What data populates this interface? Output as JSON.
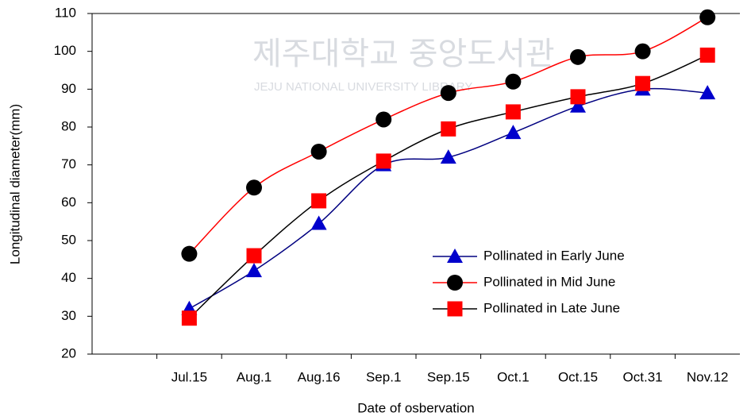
{
  "chart_data": {
    "type": "line",
    "watermark": [
      "제주대학교 중앙도서관",
      "JEJU NATIONAL UNIVERSITY LIBRARY"
    ],
    "xlabel": "Date of osbervation",
    "ylabel": "Longitudinal diameter(mm)",
    "categories": [
      null,
      "Jul.15",
      "Aug.1",
      "Aug.16",
      "Sep.1",
      "Sep.15",
      "Oct.1",
      "Oct.15",
      "Oct.31",
      "Nov.12"
    ],
    "series": [
      {
        "name": "Pollinated in Early June",
        "color": "#000080",
        "marker": "triangle",
        "marker_color": "#0000cc",
        "values": [
          null,
          32,
          42,
          54.5,
          70,
          72,
          78.5,
          85.5,
          90,
          89
        ]
      },
      {
        "name": "Pollinated in Mid June",
        "color": "#ff0000",
        "marker": "circle",
        "marker_color": "#000000",
        "values": [
          null,
          46.5,
          64,
          73.5,
          82,
          89,
          92,
          98.5,
          100,
          109
        ]
      },
      {
        "name": "Pollinated in Late June",
        "color": "#000000",
        "marker": "square",
        "marker_color": "#ff0000",
        "values": [
          null,
          29.5,
          46,
          60.5,
          71,
          79.5,
          84,
          88,
          91.5,
          99
        ]
      }
    ],
    "ylim": [
      20,
      110
    ],
    "yticks": [
      20,
      30,
      40,
      50,
      60,
      70,
      80,
      90,
      100,
      110
    ],
    "legend": "lower right"
  }
}
